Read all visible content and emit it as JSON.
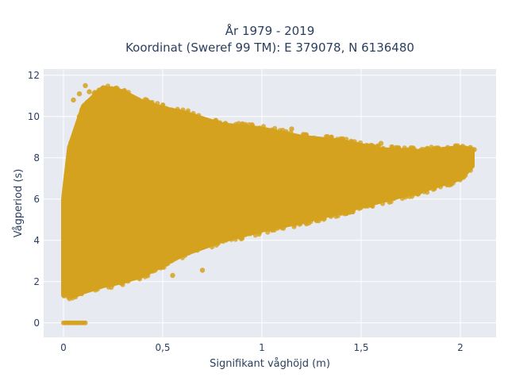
{
  "chart_data": {
    "type": "scatter",
    "title_lines": [
      "År 1979 - 2019",
      "Koordinat (Sweref 99 TM): E 379078, N 6136480"
    ],
    "xlabel": "Signifikant våghöjd (m)",
    "ylabel": "Vågperiod (s)",
    "xlim": [
      -0.1,
      2.18
    ],
    "ylim": [
      -0.7,
      12.3
    ],
    "x_ticks": [
      0,
      0.5,
      1,
      1.5,
      2
    ],
    "x_tick_labels": [
      "0",
      "0,5",
      "1",
      "1,5",
      "2"
    ],
    "y_ticks": [
      0,
      2,
      4,
      6,
      8,
      10,
      12
    ],
    "y_tick_labels": [
      "0",
      "2",
      "4",
      "6",
      "8",
      "10",
      "12"
    ],
    "grid": true,
    "legend": "none",
    "colors": {
      "marker": "#d4a21e",
      "plot_background": "#e8eaf2",
      "grid": "#ffffff",
      "text": "#2a3f5f"
    },
    "envelope": {
      "lower_boundary": [
        [
          0.0,
          1.4
        ],
        [
          0.05,
          1.3
        ],
        [
          0.1,
          1.5
        ],
        [
          0.2,
          1.8
        ],
        [
          0.3,
          2.0
        ],
        [
          0.4,
          2.3
        ],
        [
          0.5,
          2.8
        ],
        [
          0.6,
          3.3
        ],
        [
          0.8,
          4.0
        ],
        [
          1.0,
          4.5
        ],
        [
          1.2,
          4.9
        ],
        [
          1.4,
          5.4
        ],
        [
          1.6,
          5.9
        ],
        [
          1.8,
          6.4
        ],
        [
          2.0,
          7.0
        ],
        [
          2.06,
          7.6
        ]
      ],
      "upper_boundary": [
        [
          0.0,
          6.0
        ],
        [
          0.03,
          8.5
        ],
        [
          0.1,
          10.5
        ],
        [
          0.2,
          11.4
        ],
        [
          0.3,
          11.2
        ],
        [
          0.4,
          10.7
        ],
        [
          0.5,
          10.4
        ],
        [
          0.6,
          10.2
        ],
        [
          0.8,
          9.6
        ],
        [
          1.0,
          9.4
        ],
        [
          1.2,
          9.0
        ],
        [
          1.4,
          8.8
        ],
        [
          1.6,
          8.4
        ],
        [
          1.8,
          8.3
        ],
        [
          2.0,
          8.5
        ],
        [
          2.06,
          8.4
        ]
      ]
    },
    "zero_period_segment": {
      "x_range": [
        0.0,
        0.11
      ],
      "y": 0
    },
    "sample_points": [
      [
        0.08,
        11.1
      ],
      [
        0.11,
        11.5
      ],
      [
        0.13,
        11.2
      ],
      [
        0.25,
        11.3
      ],
      [
        0.3,
        11.0
      ],
      [
        0.05,
        10.8
      ],
      [
        0.55,
        10.1
      ],
      [
        0.7,
        9.9
      ],
      [
        0.8,
        9.6
      ],
      [
        0.95,
        9.6
      ],
      [
        1.05,
        9.2
      ],
      [
        1.15,
        9.4
      ],
      [
        1.25,
        8.9
      ],
      [
        1.35,
        9.0
      ],
      [
        1.45,
        8.8
      ],
      [
        1.55,
        8.6
      ],
      [
        1.6,
        8.7
      ],
      [
        1.7,
        8.3
      ],
      [
        1.85,
        8.0
      ],
      [
        2.0,
        8.4
      ],
      [
        2.05,
        8.5
      ],
      [
        2.07,
        8.4
      ],
      [
        0.7,
        2.55
      ],
      [
        0.55,
        2.3
      ],
      [
        0.04,
        1.3
      ],
      [
        0.0,
        1.5
      ],
      [
        1.9,
        7.2
      ],
      [
        2.02,
        8.0
      ],
      [
        1.2,
        4.9
      ],
      [
        0.9,
        4.1
      ]
    ]
  }
}
